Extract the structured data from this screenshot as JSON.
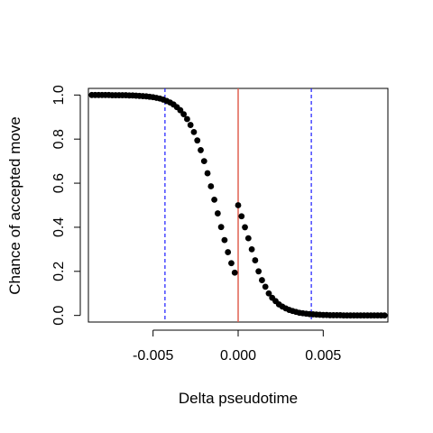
{
  "chart_data": {
    "type": "scatter",
    "title": "",
    "xlabel": "Delta pseudotime",
    "ylabel": "Chance of accepted move",
    "xlim": [
      -0.0088,
      0.0088
    ],
    "ylim": [
      -0.03,
      1.03
    ],
    "x_ticks": [
      {
        "value": -0.005,
        "label": "-0.005"
      },
      {
        "value": 0.0,
        "label": "0.000"
      },
      {
        "value": 0.005,
        "label": "0.005"
      }
    ],
    "y_ticks": [
      {
        "value": 0.0,
        "label": "0.0"
      },
      {
        "value": 0.2,
        "label": "0.2"
      },
      {
        "value": 0.4,
        "label": "0.4"
      },
      {
        "value": 0.6,
        "label": "0.6"
      },
      {
        "value": 0.8,
        "label": "0.8"
      },
      {
        "value": 1.0,
        "label": "1.0"
      }
    ],
    "grid": false,
    "point_color": "#000000",
    "series": [
      {
        "x": [
          -0.0086,
          -0.0084,
          -0.0082,
          -0.008,
          -0.0078,
          -0.0076,
          -0.0074,
          -0.0072,
          -0.007,
          -0.0068,
          -0.0066,
          -0.0064,
          -0.0062,
          -0.006,
          -0.0058,
          -0.0056,
          -0.0054,
          -0.0052,
          -0.005,
          -0.0048,
          -0.0046,
          -0.0044,
          -0.0042,
          -0.004,
          -0.0038,
          -0.0036,
          -0.0034,
          -0.0032,
          -0.003,
          -0.0028,
          -0.0026,
          -0.0024,
          -0.0022,
          -0.002,
          -0.0018,
          -0.0016,
          -0.0014,
          -0.0012,
          -0.001,
          -0.0008,
          -0.0006,
          -0.0004,
          -0.0002,
          0.0,
          0.0002,
          0.0004,
          0.0006,
          0.0008,
          0.001,
          0.0012,
          0.0014,
          0.0016,
          0.0018,
          0.002,
          0.0022,
          0.0024,
          0.0026,
          0.0028,
          0.003,
          0.0032,
          0.0034,
          0.0036,
          0.0038,
          0.004,
          0.0042,
          0.0044,
          0.0046,
          0.0048,
          0.005,
          0.0052,
          0.0054,
          0.0056,
          0.0058,
          0.006,
          0.0062,
          0.0064,
          0.0066,
          0.0068,
          0.007,
          0.0072,
          0.0074,
          0.0076,
          0.0078,
          0.008,
          0.0082,
          0.0084,
          0.0086
        ],
        "y": [
          1.0,
          1.0,
          1.0,
          1.0,
          1.0,
          1.0,
          0.999,
          0.999,
          0.999,
          0.999,
          0.999,
          0.998,
          0.998,
          0.997,
          0.996,
          0.995,
          0.994,
          0.992,
          0.99,
          0.987,
          0.984,
          0.979,
          0.973,
          0.966,
          0.957,
          0.945,
          0.931,
          0.913,
          0.891,
          0.864,
          0.832,
          0.794,
          0.75,
          0.7,
          0.645,
          0.586,
          0.525,
          0.463,
          0.401,
          0.342,
          0.287,
          0.237,
          0.194,
          0.5,
          0.45,
          0.4,
          0.35,
          0.3,
          0.25,
          0.2,
          0.16,
          0.13,
          0.1,
          0.08,
          0.065,
          0.05,
          0.04,
          0.032,
          0.025,
          0.02,
          0.016,
          0.012,
          0.01,
          0.008,
          0.006,
          0.005,
          0.004,
          0.003,
          0.002,
          0.002,
          0.001,
          0.001,
          0.001,
          0.001,
          0.0,
          0.0,
          0.0,
          0.0,
          0.0,
          0.0,
          0.0,
          0.0,
          0.0,
          0.0,
          0.0,
          0.0,
          0.0
        ]
      }
    ],
    "reference_lines": [
      {
        "axis": "x",
        "value": 0.0,
        "color": "#e06050",
        "style": "solid"
      },
      {
        "axis": "x",
        "value": -0.0043,
        "color": "#1a1aff",
        "style": "dashed"
      },
      {
        "axis": "x",
        "value": 0.0043,
        "color": "#1a1aff",
        "style": "dashed"
      }
    ]
  }
}
